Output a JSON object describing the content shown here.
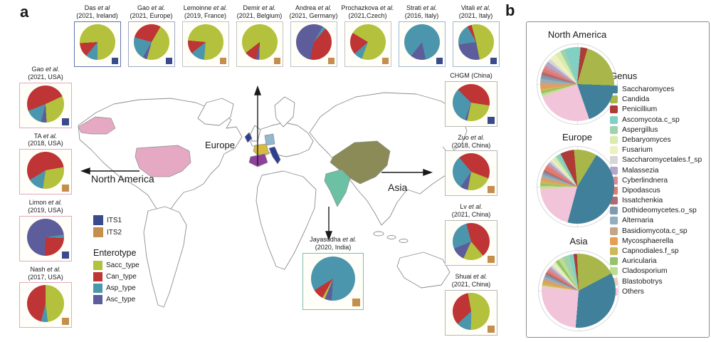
{
  "panel_a": {
    "label": "a",
    "map_labels": {
      "europe": "Europe",
      "north_america": "North America",
      "asia": "Asia"
    },
    "its_legend": {
      "items": [
        {
          "label": "ITS1"
        },
        {
          "label": "ITS2"
        }
      ]
    },
    "enterotype_legend": {
      "title": "Enterotype",
      "items": [
        {
          "label": "Sacc_type"
        },
        {
          "label": "Can_type"
        },
        {
          "label": "Asp_type"
        },
        {
          "label": "Asc_type"
        }
      ]
    }
  },
  "panel_b": {
    "label": "b",
    "genus_legend": {
      "title": "Genus",
      "items": [
        "Saccharomyces",
        "Candida",
        "Penicillium",
        "Ascomycota.c_sp",
        "Aspergillus",
        "Debaryomyces",
        "Fusarium",
        "Saccharomycetales.f_sp",
        "Malassezia",
        "Cyberlindnera",
        "Dipodascus",
        "Issatchenkia",
        "Dothideomycetes.o_sp",
        "Alternaria",
        "Basidiomycota.c_sp",
        "Mycosphaerella",
        "Capnodiales.f_sp",
        "Auricularia",
        "Cladosporium",
        "Blastobotrys",
        "Others"
      ]
    }
  },
  "colors": {
    "enterotype": {
      "Sacc_type": "#b3c13c",
      "Can_type": "#bf3434",
      "Asp_type": "#4b96ad",
      "Asc_type": "#5d5d9c"
    },
    "its": {
      "ITS1": "#3a4b8c",
      "ITS2": "#c48f4c"
    },
    "genus": {
      "Saccharomyces": "#41809b",
      "Candida": "#a9b74a",
      "Penicillium": "#ae3b35",
      "Ascomycota.c_sp": "#82cfc3",
      "Aspergillus": "#9ed3ab",
      "Debaryomyces": "#d9ecb0",
      "Fusarium": "#eef0c0",
      "Saccharomycetales.f_sp": "#d6d6d6",
      "Malassezia": "#b3a6c9",
      "Cyberlindnera": "#d48b94",
      "Dipodascus": "#e2796a",
      "Issatchenkia": "#b06a72",
      "Dothideomycetes.o_sp": "#7e9bb0",
      "Alternaria": "#93aebc",
      "Basidiomycota.c_sp": "#c6a488",
      "Mycosphaerella": "#e69f52",
      "Capnodiales.f_sp": "#cdb959",
      "Auricularia": "#94c36c",
      "Cladosporium": "#bedb94",
      "Blastobotrys": "#e6d0b8",
      "Others": "#f2c4da"
    },
    "map": {
      "usa": "#e6a9c3",
      "alaska": "#e6a9c3",
      "ireland": "#2e3f8f",
      "france": "#d6bb3d",
      "germany": "#93b7cf",
      "spain": "#8f3f9c",
      "italy": "#2e3f8f",
      "china": "#8b8b58",
      "india": "#6cc0a4"
    }
  },
  "chart_data": [
    {
      "type": "pie",
      "id": "das",
      "group": "top",
      "name": "Das",
      "etal": "et al",
      "line2": "(2021, Ireland)",
      "marker": "ITS1",
      "border": "#5f74ad",
      "start": 180,
      "slices": [
        [
          "Asp_type",
          11
        ],
        [
          "Can_type",
          13
        ],
        [
          "Sacc_type",
          76
        ]
      ]
    },
    {
      "type": "pie",
      "id": "gao_eu",
      "group": "top",
      "name": "Gao",
      "etal": "et al.",
      "line2": "(2021, Europe)",
      "marker": "ITS1",
      "border": "#9fa9c6",
      "start": 30,
      "slices": [
        [
          "Sacc_type",
          46
        ],
        [
          "Asc_type",
          4
        ],
        [
          "Asp_type",
          21
        ],
        [
          "Can_type",
          29
        ]
      ]
    },
    {
      "type": "pie",
      "id": "lemoinne",
      "group": "top",
      "name": "Lemoinne",
      "etal": "et al.",
      "line2": "(2019, France)",
      "marker": "ITS2",
      "border": "#c3c3c3",
      "start": 185,
      "slices": [
        [
          "Asp_type",
          13
        ],
        [
          "Can_type",
          12
        ],
        [
          "Sacc_type",
          75
        ]
      ]
    },
    {
      "type": "pie",
      "id": "demir",
      "group": "top",
      "name": "Demir",
      "etal": "et al.",
      "line2": "(2021, Belgium)",
      "marker": "ITS2",
      "border": "#c3c3c3",
      "start": 182,
      "slices": [
        [
          "Asc_type",
          3
        ],
        [
          "Can_type",
          11
        ],
        [
          "Sacc_type",
          86
        ]
      ]
    },
    {
      "type": "pie",
      "id": "andrea",
      "group": "top",
      "name": "Andrea",
      "etal": "et al.",
      "line2": "(2021, Germany)",
      "marker": "ITS2",
      "border": "#b9c3cc",
      "start": 30,
      "slices": [
        [
          "Asp_type",
          3
        ],
        [
          "Can_type",
          42
        ],
        [
          "Asc_type",
          55
        ]
      ]
    },
    {
      "type": "pie",
      "id": "prochazkova",
      "group": "top",
      "name": "Prochazkova",
      "etal": "et al.",
      "line2": "(2021,Czech)",
      "marker": "ITS2",
      "border": "#c3c3c3",
      "start": 200,
      "slices": [
        [
          "Asp_type",
          8
        ],
        [
          "Can_type",
          20
        ],
        [
          "Sacc_type",
          72
        ]
      ]
    },
    {
      "type": "pie",
      "id": "strati",
      "group": "top",
      "name": "Strati",
      "etal": "et al.",
      "line2": "(2016, Italy)",
      "marker": "ITS1",
      "border": "#9db8d6",
      "start": 168,
      "slices": [
        [
          "Asc_type",
          14
        ],
        [
          "Asp_type",
          86
        ]
      ]
    },
    {
      "type": "pie",
      "id": "vitali",
      "group": "top",
      "name": "Vitali",
      "etal": "et al.",
      "line2": "(2021, Italy)",
      "marker": "ITS1",
      "border": "#9db8d6",
      "start": 345,
      "slices": [
        [
          "Sacc_type",
          51
        ],
        [
          "Asc_type",
          26
        ],
        [
          "Asp_type",
          19
        ],
        [
          "Can_type",
          4
        ]
      ]
    },
    {
      "type": "pie",
      "id": "gao_usa",
      "group": "left",
      "name": "Gao",
      "etal": "et al.",
      "line2": "(2021, USA)",
      "marker": "ITS1",
      "border": "#e2a9bf",
      "start": 65,
      "slices": [
        [
          "Sacc_type",
          31
        ],
        [
          "Asc_type",
          5
        ],
        [
          "Asp_type",
          15
        ],
        [
          "Can_type",
          49
        ]
      ]
    },
    {
      "type": "pie",
      "id": "ta",
      "group": "left",
      "name": "TA",
      "etal": "et al.",
      "line2": "(2018, USA)",
      "marker": "ITS2",
      "border": "#e2a9bf",
      "start": 80,
      "slices": [
        [
          "Sacc_type",
          30
        ],
        [
          "Asp_type",
          14
        ],
        [
          "Can_type",
          56
        ]
      ]
    },
    {
      "type": "pie",
      "id": "limon",
      "group": "left",
      "name": "Limon",
      "etal": "et al.",
      "line2": "(2019, USA)",
      "marker": "ITS1",
      "border": "#e2a9bf",
      "start": 82,
      "slices": [
        [
          "Asp_type",
          3
        ],
        [
          "Can_type",
          25
        ],
        [
          "Asc_type",
          72
        ]
      ]
    },
    {
      "type": "pie",
      "id": "nash",
      "group": "left",
      "name": "Nash",
      "etal": "et al.",
      "line2": "(2017, USA)",
      "marker": "ITS2",
      "border": "#e2a9bf",
      "start": 0,
      "slices": [
        [
          "Sacc_type",
          48
        ],
        [
          "Asp_type",
          6
        ],
        [
          "Can_type",
          46
        ]
      ]
    },
    {
      "type": "pie",
      "id": "chgm",
      "group": "right",
      "name": "CHGM (China)",
      "etal": "",
      "line2": "",
      "marker": "ITS1",
      "border": "#b8b8b8",
      "start": 315,
      "slices": [
        [
          "Can_type",
          40
        ],
        [
          "Sacc_type",
          26
        ],
        [
          "Asc_type",
          2
        ],
        [
          "Asp_type",
          32
        ]
      ]
    },
    {
      "type": "pie",
      "id": "zuo",
      "group": "right",
      "name": "Zuo",
      "etal": "et al.",
      "line2": "(2018, China)",
      "marker": "ITS2",
      "border": "#b8b8b8",
      "start": 320,
      "slices": [
        [
          "Can_type",
          42
        ],
        [
          "Sacc_type",
          22
        ],
        [
          "Asc_type",
          7
        ],
        [
          "Asp_type",
          29
        ]
      ]
    },
    {
      "type": "pie",
      "id": "lv",
      "group": "right",
      "name": "Lv",
      "etal": "et al.",
      "line2": "(2021, China)",
      "marker": "ITS2",
      "border": "#b8b8b8",
      "start": 345,
      "slices": [
        [
          "Can_type",
          43
        ],
        [
          "Sacc_type",
          18
        ],
        [
          "Asc_type",
          12
        ],
        [
          "Asp_type",
          27
        ]
      ]
    },
    {
      "type": "pie",
      "id": "shuai",
      "group": "right",
      "name": "Shuai",
      "etal": "et al.",
      "line2": "(2021, China)",
      "marker": "ITS2",
      "border": "#b8b8b8",
      "start": 350,
      "slices": [
        [
          "Sacc_type",
          53
        ],
        [
          "Asp_type",
          13
        ],
        [
          "Can_type",
          34
        ]
      ]
    },
    {
      "type": "pie",
      "id": "jayasudha",
      "group": "india",
      "name": "Jayasudha",
      "etal": "et al.",
      "line2": "(2020, India)",
      "marker": "ITS2",
      "border": "#79c0ac",
      "start": 184,
      "slices": [
        [
          "Asc_type",
          5
        ],
        [
          "Sacc_type",
          2
        ],
        [
          "Can_type",
          8
        ],
        [
          "Asp_type",
          85
        ]
      ]
    },
    {
      "type": "pie",
      "id": "na",
      "group": "region",
      "title": "North America",
      "start": -20,
      "slices": [
        [
          "Ascomycota.c_sp",
          7
        ],
        [
          "Penicillium",
          3
        ],
        [
          "Candida",
          21
        ],
        [
          "Saccharomyces",
          19
        ],
        [
          "Others",
          24
        ],
        [
          "Blastobotrys",
          1
        ],
        [
          "Cladosporium",
          1
        ],
        [
          "Auricularia",
          1
        ],
        [
          "Capnodiales.f_sp",
          1
        ],
        [
          "Mycosphaerella",
          1.5
        ],
        [
          "Basidiomycota.c_sp",
          1.5
        ],
        [
          "Alternaria",
          1.5
        ],
        [
          "Dothideomycetes.o_sp",
          1.5
        ],
        [
          "Issatchenkia",
          1.5
        ],
        [
          "Dipodascus",
          1.5
        ],
        [
          "Cyberlindnera",
          1.5
        ],
        [
          "Malassezia",
          2
        ],
        [
          "Saccharomycetales.f_sp",
          1.5
        ],
        [
          "Fusarium",
          3
        ],
        [
          "Debaryomyces",
          2.5
        ],
        [
          "Aspergillus",
          2
        ]
      ]
    },
    {
      "type": "pie",
      "id": "eu",
      "group": "region",
      "title": "Europe",
      "start": -5,
      "slices": [
        [
          "Candida",
          10
        ],
        [
          "Saccharomyces",
          45
        ],
        [
          "Others",
          19
        ],
        [
          "Blastobotrys",
          1
        ],
        [
          "Cladosporium",
          1
        ],
        [
          "Auricularia",
          1
        ],
        [
          "Capnodiales.f_sp",
          1
        ],
        [
          "Mycosphaerella",
          1
        ],
        [
          "Basidiomycota.c_sp",
          1
        ],
        [
          "Alternaria",
          1
        ],
        [
          "Dothideomycetes.o_sp",
          1
        ],
        [
          "Issatchenkia",
          1
        ],
        [
          "Dipodascus",
          2
        ],
        [
          "Cyberlindnera",
          1
        ],
        [
          "Malassezia",
          1
        ],
        [
          "Saccharomycetales.f_sp",
          1
        ],
        [
          "Fusarium",
          1
        ],
        [
          "Debaryomyces",
          1.5
        ],
        [
          "Aspergillus",
          1
        ],
        [
          "Ascomycota.c_sp",
          1.5
        ],
        [
          "Penicillium",
          6
        ]
      ]
    },
    {
      "type": "pie",
      "id": "as",
      "group": "region",
      "title": "Asia",
      "start": -8,
      "slices": [
        [
          "Penicillium",
          1.5
        ],
        [
          "Candida",
          18
        ],
        [
          "Saccharomyces",
          34
        ],
        [
          "Others",
          25
        ],
        [
          "Blastobotrys",
          1
        ],
        [
          "Capnodiales.f_sp",
          1
        ],
        [
          "Mycosphaerella",
          1
        ],
        [
          "Basidiomycota.c_sp",
          1
        ],
        [
          "Alternaria",
          1
        ],
        [
          "Dothideomycetes.o_sp",
          1
        ],
        [
          "Issatchenkia",
          1
        ],
        [
          "Dipodascus",
          1
        ],
        [
          "Cyberlindnera",
          1
        ],
        [
          "Malassezia",
          1
        ],
        [
          "Saccharomycetales.f_sp",
          1
        ],
        [
          "Fusarium",
          1
        ],
        [
          "Debaryomyces",
          1
        ],
        [
          "Auricularia",
          1.5
        ],
        [
          "Cladosporium",
          2
        ],
        [
          "Aspergillus",
          3
        ],
        [
          "Ascomycota.c_sp",
          2
        ]
      ]
    }
  ]
}
